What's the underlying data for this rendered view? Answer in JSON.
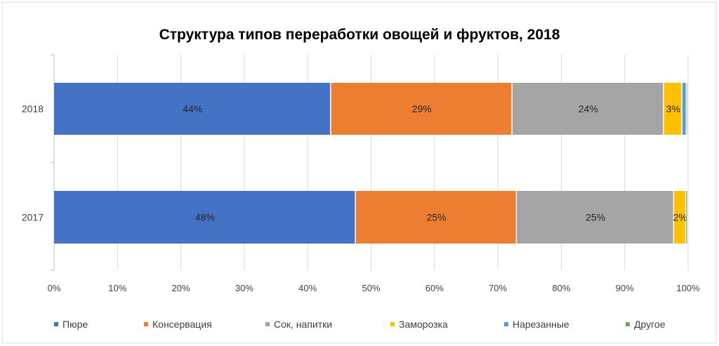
{
  "chart_data": {
    "type": "bar",
    "orientation": "horizontal",
    "stacked": "percent",
    "title": "Структура типов переработки овощей и фруктов, 2018",
    "categories": [
      "2018",
      "2017"
    ],
    "series": [
      {
        "name": "Пюре",
        "color": "#4472C4",
        "values": [
          43.7,
          47.6
        ],
        "labels": [
          "44%",
          "48%"
        ]
      },
      {
        "name": "Консервация",
        "color": "#ED7D31",
        "values": [
          28.6,
          25.4
        ],
        "labels": [
          "29%",
          "25%"
        ]
      },
      {
        "name": "Сок, напитки",
        "color": "#A5A5A5",
        "values": [
          23.9,
          24.8
        ],
        "labels": [
          "24%",
          "25%"
        ]
      },
      {
        "name": "Заморозка",
        "color": "#FFC000",
        "values": [
          2.9,
          1.9
        ],
        "labels": [
          "3%",
          "2%"
        ]
      },
      {
        "name": "Нарезанные",
        "color": "#5B9BD5",
        "values": [
          0.7,
          0.0
        ],
        "labels": [
          "",
          ""
        ]
      },
      {
        "name": "Другое",
        "color": "#70AD47",
        "values": [
          0.2,
          0.3
        ],
        "labels": [
          "",
          ""
        ]
      }
    ],
    "xlim": [
      0,
      100
    ],
    "xticks": [
      "0%",
      "10%",
      "20%",
      "30%",
      "40%",
      "50%",
      "60%",
      "70%",
      "80%",
      "90%",
      "100%"
    ],
    "grid": true,
    "legend": "bottom"
  }
}
